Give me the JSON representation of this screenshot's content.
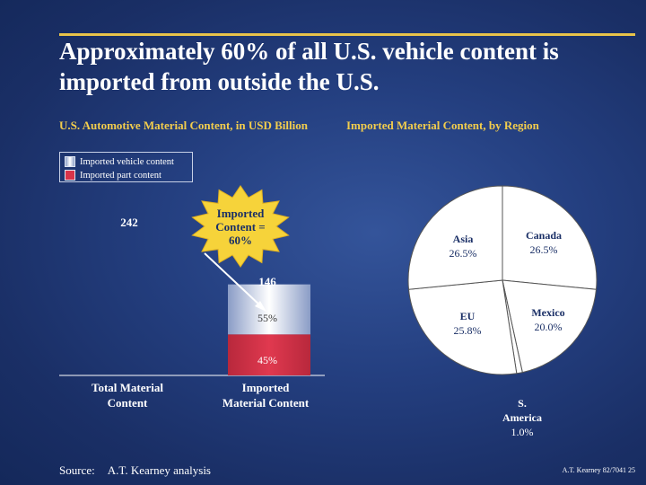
{
  "slide": {
    "title": "Approximately 60% of all U.S. vehicle content is imported from outside the U.S.",
    "left_subtitle": "U.S. Automotive Material Content, in USD Billion",
    "right_subtitle": "Imported Material Content, by Region",
    "legend": [
      "Imported vehicle content",
      "Imported part content"
    ],
    "callout": [
      "Imported",
      "Content =",
      "60%"
    ],
    "footer": {
      "source_label": "Source:",
      "source_text": "A.T. Kearney analysis",
      "reference": "A.T. Kearney 82/7041 25"
    }
  },
  "colors": {
    "vehicle_content": "#ffffff",
    "part_content": "#d9344a",
    "title_rule": "#e8c34a",
    "subtitle_text": "#f2cd4d",
    "callout_star": "#f6d33a"
  },
  "chart_data": [
    {
      "type": "bar",
      "title": "U.S. Automotive Material Content, in USD Billion",
      "categories": [
        "Total Material Content",
        "Imported Material Content"
      ],
      "totals": [
        242,
        146
      ],
      "series": [
        {
          "name": "Imported vehicle content",
          "values": [
            null,
            80.3
          ]
        },
        {
          "name": "Imported part content",
          "values": [
            null,
            65.7
          ]
        }
      ],
      "segment_labels": [
        "55%",
        "45%"
      ],
      "ylim": [
        0,
        242
      ]
    },
    {
      "type": "pie",
      "title": "Imported Material Content, by Region",
      "labels": [
        "Canada",
        "Mexico",
        "S. America",
        "EU",
        "Asia"
      ],
      "values": [
        26.5,
        20.0,
        1.0,
        25.8,
        26.5
      ],
      "value_labels": [
        "26.5%",
        "20.0%",
        "1.0%",
        "25.8%",
        "26.5%"
      ]
    }
  ]
}
